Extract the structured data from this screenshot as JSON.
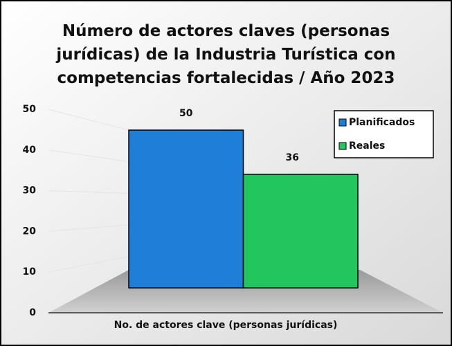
{
  "chart_data": {
    "type": "bar",
    "title": "Número de actores claves (personas jurídicas) de la Industria Turística con competencias fortalecidas / Año 2023",
    "categories": [
      "No. de actores clave (personas jurídicas)"
    ],
    "series": [
      {
        "name": "Planificados",
        "color": "#1f7fd8",
        "values": [
          50
        ]
      },
      {
        "name": "Reales",
        "color": "#22c55e",
        "values": [
          36
        ]
      }
    ],
    "ylim": [
      0,
      50
    ],
    "yticks": [
      0,
      10,
      20,
      30,
      40,
      50
    ],
    "grid": true,
    "legend": "top-right"
  }
}
